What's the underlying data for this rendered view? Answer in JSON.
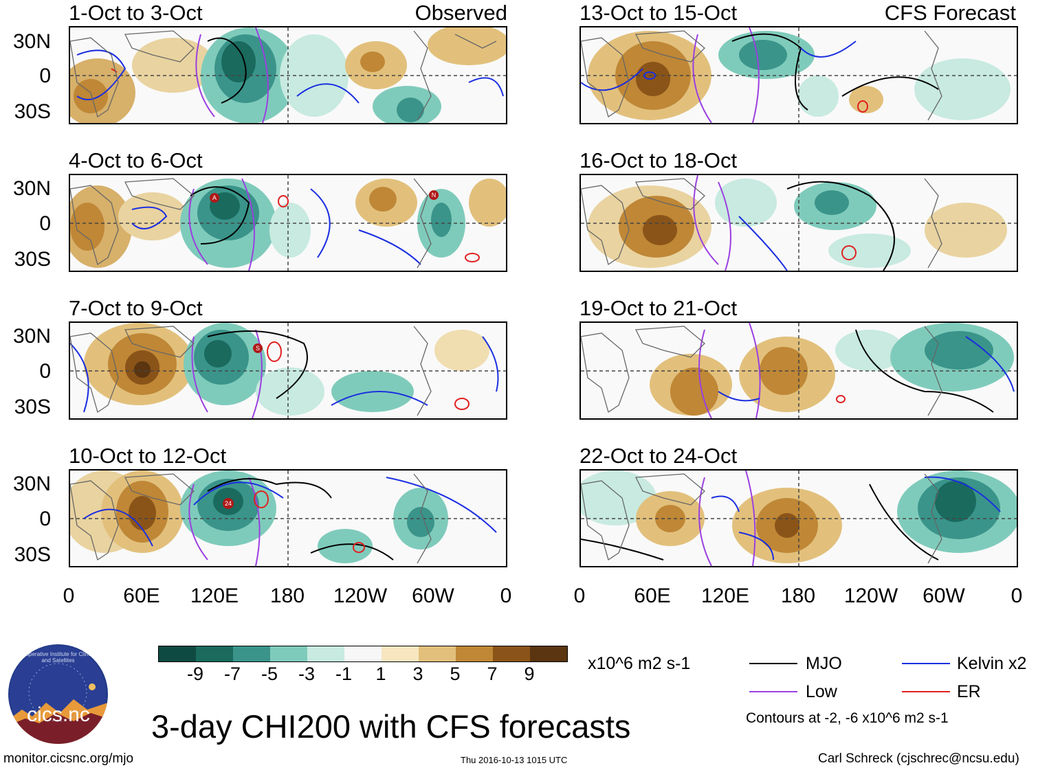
{
  "headers": {
    "left": "Observed",
    "right": "CFS Forecast"
  },
  "lat_labels": [
    "30N",
    "0",
    "30S"
  ],
  "lon_labels": [
    "0",
    "60E",
    "120E",
    "180",
    "120W",
    "60W",
    "0"
  ],
  "panels": [
    {
      "period": "1-Oct to 3-Oct"
    },
    {
      "period": "4-Oct to 6-Oct"
    },
    {
      "period": "7-Oct to 9-Oct"
    },
    {
      "period": "10-Oct to 12-Oct"
    },
    {
      "period": "13-Oct to 15-Oct"
    },
    {
      "period": "16-Oct to 18-Oct"
    },
    {
      "period": "19-Oct to 21-Oct"
    },
    {
      "period": "22-Oct to 24-Oct"
    }
  ],
  "storm_markers": [
    {
      "panel": 1,
      "label": "A"
    },
    {
      "panel": 1,
      "label": "N"
    },
    {
      "panel": 2,
      "label": "S"
    },
    {
      "panel": 3,
      "label": "24"
    }
  ],
  "colorbar": {
    "colors": [
      "#0f4a42",
      "#1a6a5e",
      "#3a948a",
      "#7fcbbb",
      "#c8eae0",
      "#f7f7f7",
      "#f7e6c0",
      "#e2c07c",
      "#bf8736",
      "#8a5419",
      "#5a3510"
    ],
    "labels": [
      "-9",
      "-7",
      "-5",
      "-3",
      "-1",
      "1",
      "3",
      "5",
      "7",
      "9"
    ],
    "units": "x10^6 m2 s-1"
  },
  "legend": {
    "items": [
      {
        "label": "MJO",
        "color": "#000000"
      },
      {
        "label": "Kelvin x2",
        "color": "#1a2ee0"
      },
      {
        "label": "Low",
        "color": "#9b3fe0"
      },
      {
        "label": "ER",
        "color": "#e02020"
      }
    ],
    "note": "Contours at -2, -6 x10^6 m2 s-1"
  },
  "logo": {
    "text": "cics.nc",
    "ring": "Cooperative Institute for Climate and Satellites"
  },
  "title": "3-day CHI200 with CFS forecasts",
  "footer": {
    "url": "monitor.cicsnc.org/mjo",
    "timestamp": "Thu 2016-10-13 1015 UTC",
    "author": "Carl Schreck (cjschrec@ncsu.edu)"
  }
}
